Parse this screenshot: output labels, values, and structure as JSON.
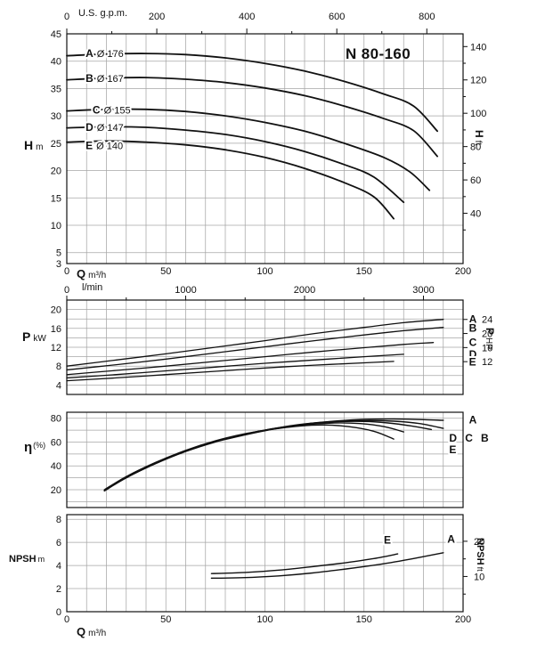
{
  "title": "N 80-160",
  "colors": {
    "curve": "#111111",
    "grid": "#a6a6a6",
    "frame": "#111111",
    "text": "#111111",
    "background": "#ffffff"
  },
  "axis_labels": {
    "flow_top": "U.S. g.p.m.",
    "flow_lmin": "l/min",
    "flow_q_sym": "Q",
    "flow_q_unit": "m³/h",
    "head_sym": "H",
    "head_unit": "m",
    "head_right_sym": "H",
    "head_right_unit": "ft",
    "power_sym": "P",
    "power_unit": "kW",
    "power_right_sym": "P",
    "power_right_unit": "HP",
    "eff_sym": "η",
    "eff_unit": "(%)",
    "npsh_sym": "NPSH",
    "npsh_unit": "m",
    "npsh_right_sym": "NPSH",
    "npsh_right_unit": "ft"
  },
  "chart_data": [
    {
      "id": "h",
      "type": "line",
      "title": "N 80-160",
      "xlabel": "Q m³/h",
      "ylabel": "H m",
      "x": {
        "min": 0,
        "max": 200,
        "grid_step": 10,
        "tick_labels": [
          0,
          50,
          100,
          150,
          200
        ],
        "show_tick_labels": true
      },
      "x_top": {
        "label": "U.S. g.p.m.",
        "factor": 0.22712,
        "majors": [
          0,
          200,
          400,
          600,
          800
        ],
        "minor_step": 100,
        "label_dy": -16,
        "major_len": 6,
        "minor_len": 3
      },
      "y": {
        "min": 3,
        "max": 45,
        "grid_start": 5,
        "grid_step": 5,
        "ticks": [
          3,
          5,
          10,
          15,
          20,
          25,
          30,
          35,
          40,
          45
        ]
      },
      "y_right": {
        "label": "H ft",
        "factor": 0.3048,
        "majors": [
          40,
          60,
          80,
          100,
          120,
          140
        ],
        "minor_step": 10,
        "minor_min": 30,
        "minor_max": 140,
        "label_offset": 8
      },
      "stroke_w": 1.8,
      "series": [
        {
          "name": "A",
          "diameter": "Ø 176",
          "points": [
            [
              0,
              41
            ],
            [
              20,
              41.3
            ],
            [
              40,
              41.4
            ],
            [
              60,
              41.2
            ],
            [
              80,
              40.6
            ],
            [
              100,
              39.6
            ],
            [
              120,
              38.2
            ],
            [
              140,
              36.3
            ],
            [
              160,
              34
            ],
            [
              175,
              31.8
            ],
            [
              187,
              27.2
            ]
          ]
        },
        {
          "name": "B",
          "diameter": "Ø 167",
          "points": [
            [
              0,
              36.6
            ],
            [
              20,
              36.9
            ],
            [
              40,
              37
            ],
            [
              60,
              36.7
            ],
            [
              80,
              36.1
            ],
            [
              100,
              35.1
            ],
            [
              120,
              33.7
            ],
            [
              140,
              31.8
            ],
            [
              160,
              29.5
            ],
            [
              175,
              27.3
            ],
            [
              187,
              22.6
            ]
          ]
        },
        {
          "name": "C",
          "diameter": "Ø 155",
          "points": [
            [
              0,
              30.9
            ],
            [
              20,
              31.2
            ],
            [
              40,
              31.2
            ],
            [
              60,
              30.8
            ],
            [
              80,
              30
            ],
            [
              100,
              28.8
            ],
            [
              120,
              27.2
            ],
            [
              140,
              25
            ],
            [
              160,
              22.4
            ],
            [
              173,
              19.8
            ],
            [
              183,
              16.4
            ]
          ]
        },
        {
          "name": "D",
          "diameter": "Ø 147",
          "points": [
            [
              0,
              27.8
            ],
            [
              20,
              28
            ],
            [
              40,
              27.9
            ],
            [
              60,
              27.4
            ],
            [
              80,
              26.6
            ],
            [
              100,
              25.3
            ],
            [
              120,
              23.5
            ],
            [
              140,
              21.1
            ],
            [
              155,
              18.8
            ],
            [
              170,
              14.2
            ]
          ]
        },
        {
          "name": "E",
          "diameter": "Ø 140",
          "points": [
            [
              0,
              25.2
            ],
            [
              20,
              25.4
            ],
            [
              40,
              25.2
            ],
            [
              60,
              24.7
            ],
            [
              80,
              23.8
            ],
            [
              100,
              22.4
            ],
            [
              120,
              20.4
            ],
            [
              140,
              17.8
            ],
            [
              155,
              15.2
            ],
            [
              165,
              11.2
            ]
          ]
        }
      ],
      "labels": [
        {
          "bold": "A",
          "rest": "Ø 176",
          "q": 9.5,
          "v": 41.4
        },
        {
          "bold": "B",
          "rest": "Ø 167",
          "q": 9.5,
          "v": 36.9
        },
        {
          "bold": "C",
          "rest": "Ø 155",
          "q": 13,
          "v": 31.1
        },
        {
          "bold": "D",
          "rest": "Ø 147",
          "q": 9.5,
          "v": 27.9
        },
        {
          "bold": "E",
          "rest": "Ø 140",
          "q": 9.5,
          "v": 24.6
        }
      ]
    },
    {
      "id": "p",
      "type": "line",
      "xlabel": "Q m³/h",
      "ylabel": "P kW",
      "x": {
        "min": 0,
        "max": 200,
        "grid_step": 10,
        "tick_labels": [],
        "show_tick_labels": false
      },
      "x_top": {
        "label": "l/min",
        "factor": 0.06,
        "majors": [
          0,
          1000,
          2000,
          3000
        ],
        "minor_step": 500,
        "label_dy": -8,
        "major_len": 5,
        "minor_len": 3
      },
      "y": {
        "min": 2,
        "max": 22,
        "grid_start": 4,
        "grid_step": 2,
        "ticks": [
          4,
          8,
          12,
          16,
          20
        ]
      },
      "y_right": {
        "label": "P HP",
        "factor": 0.7457,
        "majors": [
          12,
          16,
          20,
          24
        ],
        "minor_step": 0,
        "minor_min": 0,
        "minor_max": 0,
        "label_offset": 21
      },
      "stroke_w": 1.3,
      "series": [
        {
          "name": "A",
          "points": [
            [
              0,
              8
            ],
            [
              25,
              9.3
            ],
            [
              50,
              10.6
            ],
            [
              75,
              12
            ],
            [
              100,
              13.4
            ],
            [
              125,
              14.9
            ],
            [
              150,
              16.2
            ],
            [
              170,
              17.2
            ],
            [
              190,
              17.9
            ]
          ]
        },
        {
          "name": "B",
          "points": [
            [
              0,
              7.2
            ],
            [
              25,
              8.3
            ],
            [
              50,
              9.5
            ],
            [
              75,
              10.8
            ],
            [
              100,
              12.1
            ],
            [
              125,
              13.4
            ],
            [
              150,
              14.6
            ],
            [
              170,
              15.5
            ],
            [
              190,
              16.2
            ]
          ]
        },
        {
          "name": "C",
          "points": [
            [
              0,
              6.2
            ],
            [
              25,
              7.1
            ],
            [
              50,
              8
            ],
            [
              75,
              9
            ],
            [
              100,
              10
            ],
            [
              125,
              11
            ],
            [
              150,
              11.9
            ],
            [
              170,
              12.6
            ],
            [
              185,
              13
            ]
          ]
        },
        {
          "name": "D",
          "points": [
            [
              0,
              5.5
            ],
            [
              25,
              6.2
            ],
            [
              50,
              7
            ],
            [
              75,
              7.8
            ],
            [
              100,
              8.6
            ],
            [
              125,
              9.3
            ],
            [
              150,
              10
            ],
            [
              170,
              10.5
            ]
          ]
        },
        {
          "name": "E",
          "points": [
            [
              0,
              4.9
            ],
            [
              25,
              5.5
            ],
            [
              50,
              6.2
            ],
            [
              75,
              6.9
            ],
            [
              100,
              7.6
            ],
            [
              125,
              8.2
            ],
            [
              150,
              8.7
            ],
            [
              165,
              9
            ]
          ]
        }
      ],
      "labels": [
        {
          "bold": "A",
          "rest": "",
          "q": 203,
          "v": 17.9
        },
        {
          "bold": "B",
          "rest": "",
          "q": 203,
          "v": 16.1
        },
        {
          "bold": "C",
          "rest": "",
          "q": 203,
          "v": 13
        },
        {
          "bold": "D",
          "rest": "",
          "q": 203,
          "v": 10.5
        },
        {
          "bold": "E",
          "rest": "",
          "q": 203,
          "v": 8.9
        }
      ]
    },
    {
      "id": "eta",
      "type": "line",
      "xlabel": "Q m³/h",
      "ylabel": "η (%)",
      "x": {
        "min": 0,
        "max": 200,
        "grid_step": 10,
        "tick_labels": [],
        "show_tick_labels": false
      },
      "y": {
        "min": 5,
        "max": 85,
        "grid_start": 10,
        "grid_step": 10,
        "ticks": [
          20,
          40,
          60,
          80
        ]
      },
      "stroke_w": 1.4,
      "series": [
        {
          "name": "A",
          "points": [
            [
              19,
              19
            ],
            [
              30,
              30
            ],
            [
              45,
              42
            ],
            [
              60,
              52
            ],
            [
              75,
              60
            ],
            [
              90,
              66
            ],
            [
              105,
              71
            ],
            [
              120,
              75
            ],
            [
              135,
              77.5
            ],
            [
              150,
              79
            ],
            [
              165,
              79.3
            ],
            [
              180,
              78.8
            ],
            [
              190,
              78.2
            ]
          ]
        },
        {
          "name": "B",
          "points": [
            [
              19,
              19
            ],
            [
              30,
              30
            ],
            [
              45,
              42
            ],
            [
              60,
              52.3
            ],
            [
              75,
              60.3
            ],
            [
              90,
              66.3
            ],
            [
              105,
              71.3
            ],
            [
              120,
              75
            ],
            [
              135,
              77.3
            ],
            [
              150,
              78
            ],
            [
              165,
              77.5
            ],
            [
              178,
              75.5
            ],
            [
              190,
              71.5
            ]
          ]
        },
        {
          "name": "C",
          "points": [
            [
              19,
              19.5
            ],
            [
              30,
              30.5
            ],
            [
              45,
              42.5
            ],
            [
              60,
              52.5
            ],
            [
              75,
              60.5
            ],
            [
              90,
              66.5
            ],
            [
              105,
              71.5
            ],
            [
              120,
              75.2
            ],
            [
              135,
              77
            ],
            [
              150,
              77.3
            ],
            [
              162,
              76
            ],
            [
              174,
              73.5
            ],
            [
              184,
              70.5
            ]
          ]
        },
        {
          "name": "D",
          "points": [
            [
              19,
              19.5
            ],
            [
              30,
              30.5
            ],
            [
              45,
              42.5
            ],
            [
              60,
              52.7
            ],
            [
              75,
              60.7
            ],
            [
              90,
              66.7
            ],
            [
              105,
              71.5
            ],
            [
              120,
              74.5
            ],
            [
              135,
              76
            ],
            [
              148,
              75.5
            ],
            [
              160,
              73
            ],
            [
              170,
              68.5
            ]
          ]
        },
        {
          "name": "E",
          "points": [
            [
              19,
              20
            ],
            [
              30,
              31
            ],
            [
              45,
              43
            ],
            [
              60,
              53
            ],
            [
              75,
              61
            ],
            [
              90,
              67
            ],
            [
              105,
              71
            ],
            [
              118,
              73.5
            ],
            [
              130,
              74.3
            ],
            [
              142,
              73
            ],
            [
              155,
              69
            ],
            [
              165,
              62.5
            ]
          ]
        }
      ],
      "labels": [
        {
          "bold": "A",
          "rest": "",
          "q": 203,
          "v": 78.5
        },
        {
          "bold": "B",
          "rest": "",
          "q": 209,
          "v": 63.5
        },
        {
          "bold": "C",
          "rest": "",
          "q": 201,
          "v": 63.5
        },
        {
          "bold": "D",
          "rest": "",
          "q": 193,
          "v": 63.5
        },
        {
          "bold": "E",
          "rest": "",
          "q": 193,
          "v": 53.5
        }
      ]
    },
    {
      "id": "npsh",
      "type": "line",
      "xlabel": "Q m³/h",
      "ylabel": "NPSH m",
      "x": {
        "min": 0,
        "max": 200,
        "grid_step": 10,
        "tick_labels": [
          0,
          50,
          100,
          150,
          200
        ],
        "show_tick_labels": true
      },
      "y": {
        "min": 0,
        "max": 8.4,
        "grid_start": 2,
        "grid_step": 2,
        "ticks": [
          0,
          2,
          4,
          6,
          8
        ]
      },
      "y_right": {
        "label": "NPSH ft",
        "factor": 0.3048,
        "majors": [
          10,
          20
        ],
        "minor_step": 5,
        "minor_min": 5,
        "minor_max": 20,
        "label_offset": 12
      },
      "stroke_w": 1.4,
      "series": [
        {
          "name": "A",
          "points": [
            [
              73,
              2.9
            ],
            [
              90,
              2.95
            ],
            [
              107,
              3.1
            ],
            [
              124,
              3.35
            ],
            [
              141,
              3.7
            ],
            [
              158,
              4.1
            ],
            [
              175,
              4.6
            ],
            [
              190,
              5.1
            ]
          ]
        },
        {
          "name": "E",
          "points": [
            [
              73,
              3.3
            ],
            [
              90,
              3.4
            ],
            [
              107,
              3.6
            ],
            [
              124,
              3.9
            ],
            [
              141,
              4.25
            ],
            [
              155,
              4.6
            ],
            [
              167,
              5
            ]
          ]
        }
      ],
      "labels": [
        {
          "bold": "E",
          "rest": "",
          "q": 160,
          "v": 6.2
        },
        {
          "bold": "A",
          "rest": "",
          "q": 192,
          "v": 6.3
        }
      ]
    }
  ]
}
